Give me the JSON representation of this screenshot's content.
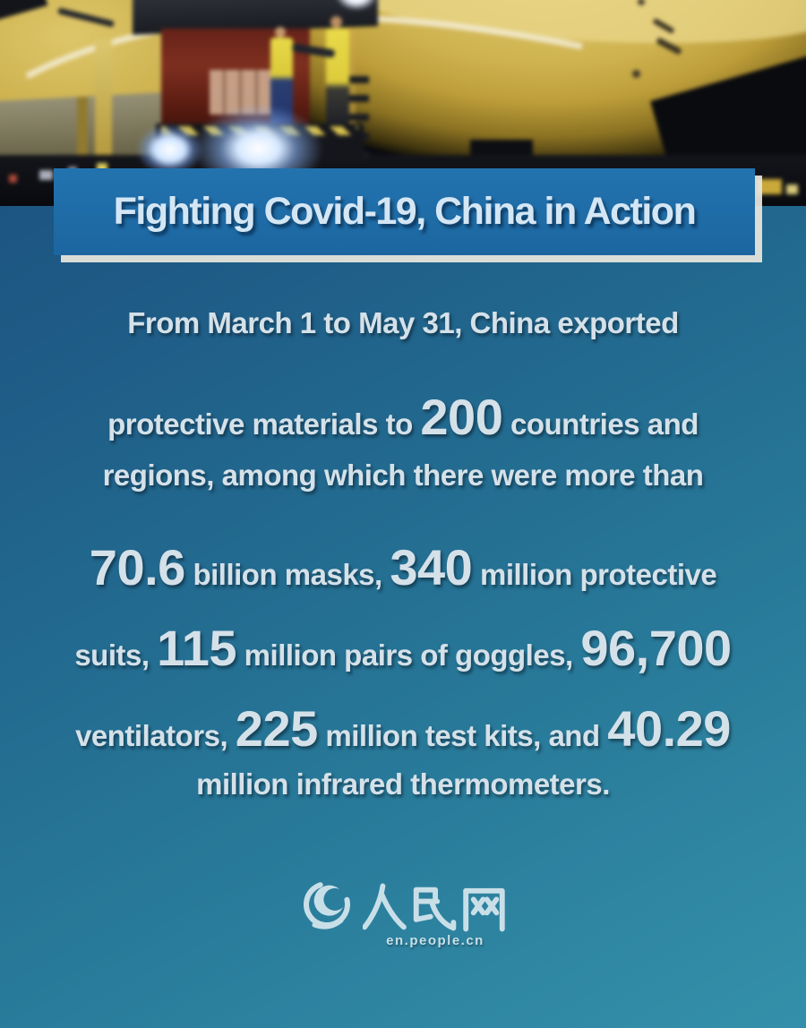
{
  "banner": {
    "title": "Fighting Covid-19, China in Action"
  },
  "intro": "From March 1 to May 31, China exported",
  "stats": {
    "lines": [
      [
        {
          "text": "protective materials to ",
          "big": false
        },
        {
          "text": "200",
          "big": true
        },
        {
          "text": " countries and",
          "big": false
        }
      ],
      [
        {
          "text": "regions, among which there were more than",
          "big": false
        }
      ],
      [
        {
          "text": "70.6",
          "big": true
        },
        {
          "text": " billion masks, ",
          "big": false
        },
        {
          "text": "340",
          "big": true
        },
        {
          "text": " million protective",
          "big": false
        }
      ],
      [
        {
          "text": "suits, ",
          "big": false
        },
        {
          "text": "115",
          "big": true
        },
        {
          "text": " million pairs of goggles, ",
          "big": false
        },
        {
          "text": "96,700",
          "big": true
        }
      ],
      [
        {
          "text": "ventilators, ",
          "big": false
        },
        {
          "text": "225",
          "big": true
        },
        {
          "text": " million test kits, and ",
          "big": false
        },
        {
          "text": "40.29",
          "big": true
        }
      ],
      [
        {
          "text": "million infrared thermometers.",
          "big": false
        }
      ]
    ],
    "figures": {
      "countries_and_regions": "200",
      "masks_billion": "70.6",
      "protective_suits_million": "340",
      "goggles_pairs_million": "115",
      "ventilators": "96,700",
      "test_kits_million": "225",
      "infrared_thermometers_million": "40.29",
      "period": "March 1 to May 31"
    }
  },
  "logo": {
    "wordmark": "人民网",
    "site": "en.people.cn"
  },
  "colors": {
    "background_top": "#1a4e7b",
    "background_bottom": "#3490aa",
    "banner_blue": "#1e6aa6",
    "banner_offset_border": "#e8e6de",
    "text": "#d5e1e9",
    "plane_fuselage_yellow": "#cdb254",
    "cargo_interior_red": "#6e2a1c"
  }
}
